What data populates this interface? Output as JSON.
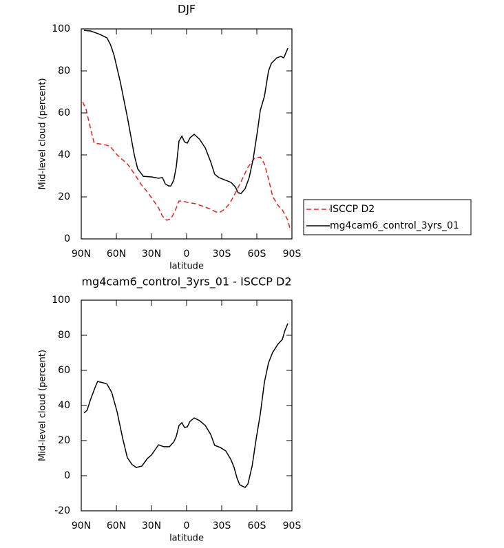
{
  "chart_data": [
    {
      "type": "line",
      "title": "DJF",
      "xlabel": "latitude",
      "ylabel": "Mid-level cloud (percent)",
      "xlim": [
        90,
        -90
      ],
      "xticks": [
        {
          "value": 90,
          "label": "90N"
        },
        {
          "value": 60,
          "label": "60N"
        },
        {
          "value": 30,
          "label": "30N"
        },
        0,
        {
          "value": -30,
          "label": "30S"
        },
        {
          "value": -60,
          "label": "60S"
        },
        {
          "value": -90,
          "label": "90S"
        }
      ],
      "ylim": [
        0,
        100
      ],
      "yticks": [
        0,
        20,
        40,
        60,
        80,
        100
      ],
      "legend": "right",
      "series": [
        {
          "name": "ISCCP D2",
          "color": "#e8221e",
          "linestyle": "dashed",
          "x": [
            88.8,
            86,
            83,
            79,
            74,
            68,
            65,
            59.4,
            54.7,
            50.6,
            44.7,
            38.8,
            33,
            28.8,
            24,
            20.6,
            17,
            13.5,
            10,
            6.5,
            3,
            -0.6,
            -8,
            -14.7,
            -20.6,
            -25.3,
            -28.8,
            -32.4,
            -37,
            -41.8,
            -47.6,
            -52.4,
            -58,
            -63,
            -66.5,
            -70,
            -73.5,
            -78,
            -81.8,
            -86.5,
            -88.8
          ],
          "values": [
            65.2,
            62,
            54.8,
            45.6,
            45.2,
            44.6,
            43.9,
            40,
            37.7,
            35.7,
            31.1,
            25.9,
            22,
            18.7,
            14.8,
            10.8,
            8.9,
            9.5,
            13.1,
            18,
            18,
            17.4,
            16.7,
            15.4,
            14.1,
            12.8,
            12.8,
            14.1,
            17,
            22,
            28.5,
            34.1,
            38.4,
            39,
            35.7,
            28.5,
            20.3,
            16,
            13.8,
            8.9,
            3.9
          ]
        },
        {
          "name": "mg4cam6_control_3yrs_01",
          "color": "#000000",
          "linestyle": "solid",
          "x": [
            87.6,
            82,
            74,
            68,
            65,
            62,
            56.5,
            50.6,
            44.7,
            41.8,
            37,
            30,
            24,
            20.6,
            18.2,
            15.3,
            13.5,
            11,
            8.8,
            6.5,
            4,
            1.8,
            -0.6,
            -3,
            -6.5,
            -11,
            -16,
            -20.6,
            -24,
            -27.6,
            -33.5,
            -38,
            -41.8,
            -44,
            -46.5,
            -50,
            -53.5,
            -57,
            -60.6,
            -63,
            -66.5,
            -70,
            -72.4,
            -77,
            -80.6,
            -83,
            -86.5
          ],
          "values": [
            99.3,
            99,
            97.4,
            95.7,
            92.5,
            87.5,
            74.4,
            58,
            40,
            33.4,
            29.8,
            29.5,
            28.9,
            29.2,
            26.2,
            25.2,
            25.2,
            27.9,
            34.4,
            46.6,
            48.9,
            46.2,
            45.6,
            48.2,
            49.8,
            47.5,
            43.3,
            36.7,
            30.8,
            29.2,
            27.9,
            26.9,
            24.6,
            22,
            21.6,
            23.9,
            29.2,
            38.4,
            51.5,
            61.3,
            67.9,
            80,
            83.6,
            86.2,
            86.9,
            86.2,
            90.8
          ]
        }
      ]
    },
    {
      "type": "line",
      "title": "mg4cam6_control_3yrs_01 - ISCCP D2",
      "xlabel": "latitude",
      "ylabel": "Mid-level cloud (percent)",
      "xlim": [
        90,
        -90
      ],
      "xticks": [
        {
          "value": 90,
          "label": "90N"
        },
        {
          "value": 60,
          "label": "60N"
        },
        {
          "value": 30,
          "label": "30N"
        },
        0,
        {
          "value": -30,
          "label": "30S"
        },
        {
          "value": -60,
          "label": "60S"
        },
        {
          "value": -90,
          "label": "90S"
        }
      ],
      "ylim": [
        -20,
        100
      ],
      "yticks": [
        -20,
        0,
        20,
        40,
        60,
        80,
        100
      ],
      "series": [
        {
          "color": "#000000",
          "linestyle": "solid",
          "x": [
            87.6,
            85,
            82,
            78,
            76,
            71,
            68,
            64,
            59.4,
            54.7,
            50.6,
            46.5,
            43,
            38.2,
            33.5,
            30,
            24,
            19.4,
            14.7,
            11,
            8.8,
            6.5,
            4,
            1.8,
            -0.6,
            -3,
            -6.5,
            -11,
            -16,
            -20.6,
            -24,
            -28.8,
            -33.5,
            -38,
            -40.6,
            -43,
            -45.3,
            -47.6,
            -50,
            -52.4,
            -56,
            -59.4,
            -63,
            -66.5,
            -70,
            -73.5,
            -78,
            -81.8,
            -84,
            -86.5
          ],
          "values": [
            35.7,
            37.3,
            43.5,
            50.6,
            53.7,
            52.9,
            52.2,
            47.5,
            36.5,
            21.6,
            10.2,
            6.3,
            4.7,
            5.5,
            9.8,
            11.8,
            17.6,
            16.5,
            16.5,
            19.2,
            22.4,
            28.6,
            30.2,
            27.5,
            27.8,
            31,
            32.9,
            31.4,
            28.6,
            23.5,
            17.3,
            16.1,
            14.1,
            9,
            4.7,
            -1.2,
            -5.1,
            -5.9,
            -6.7,
            -4.7,
            5.5,
            20.8,
            35.3,
            53.3,
            64.3,
            70.2,
            74.9,
            77.6,
            82.7,
            86.7
          ]
        }
      ]
    }
  ]
}
